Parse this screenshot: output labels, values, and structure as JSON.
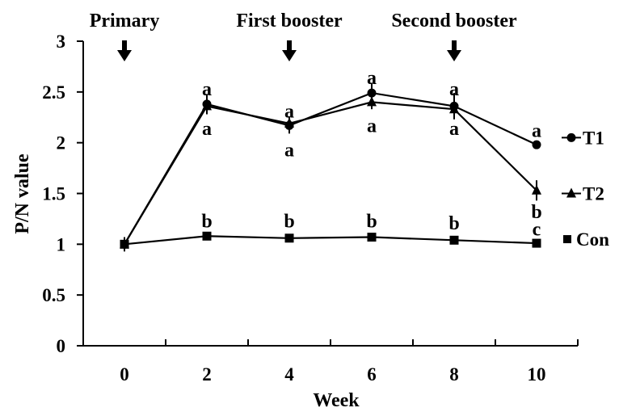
{
  "chart_data": {
    "type": "line",
    "xlabel": "Week",
    "ylabel": "P/N value",
    "x": [
      0,
      2,
      4,
      6,
      8,
      10
    ],
    "xlim": [
      -1,
      11
    ],
    "ylim": [
      0,
      3
    ],
    "y_ticks": [
      "0",
      "0.5",
      "1",
      "1.5",
      "2",
      "2.5",
      "3"
    ],
    "x_ticks": [
      "0",
      "2",
      "4",
      "6",
      "8",
      "10"
    ],
    "grid": false,
    "legend_placement": "right, inline at series ends",
    "series": [
      {
        "name": "T1",
        "marker": "circle",
        "values": [
          1.0,
          2.38,
          2.17,
          2.49,
          2.36,
          1.98
        ],
        "errors": [
          0.07,
          0.1,
          0.08,
          0.1,
          0.13,
          0
        ]
      },
      {
        "name": "T2",
        "marker": "triangle",
        "values": [
          1.0,
          2.36,
          2.19,
          2.4,
          2.33,
          1.53
        ],
        "errors": [
          0.07,
          0.08,
          0.07,
          0.07,
          0.08,
          0.1
        ]
      },
      {
        "name": "Con",
        "marker": "square",
        "values": [
          1.0,
          1.08,
          1.06,
          1.07,
          1.04,
          1.01
        ],
        "errors": [
          0.07,
          0.02,
          0.02,
          0.02,
          0.02,
          0.01
        ]
      }
    ],
    "annotations": [
      {
        "text": "Primary",
        "x": 0
      },
      {
        "text": "First booster",
        "x": 4
      },
      {
        "text": "Second booster",
        "x": 8
      }
    ],
    "significance_letters": [
      {
        "x": 2,
        "y": 2.53,
        "text": "a"
      },
      {
        "x": 2,
        "y": 2.14,
        "text": "a"
      },
      {
        "x": 4,
        "y": 2.31,
        "text": "a"
      },
      {
        "x": 4,
        "y": 1.93,
        "text": "a"
      },
      {
        "x": 6,
        "y": 2.64,
        "text": "a"
      },
      {
        "x": 6,
        "y": 2.17,
        "text": "a"
      },
      {
        "x": 8,
        "y": 2.53,
        "text": "a"
      },
      {
        "x": 8,
        "y": 2.14,
        "text": "a"
      },
      {
        "x": 10,
        "y": 2.12,
        "text": "a"
      },
      {
        "x": 10,
        "y": 1.32,
        "text": "b"
      },
      {
        "x": 10,
        "y": 1.15,
        "text": "c"
      },
      {
        "x": 2,
        "y": 1.23,
        "text": "b"
      },
      {
        "x": 4,
        "y": 1.23,
        "text": "b"
      },
      {
        "x": 6,
        "y": 1.23,
        "text": "b"
      },
      {
        "x": 8,
        "y": 1.21,
        "text": "b"
      }
    ]
  }
}
